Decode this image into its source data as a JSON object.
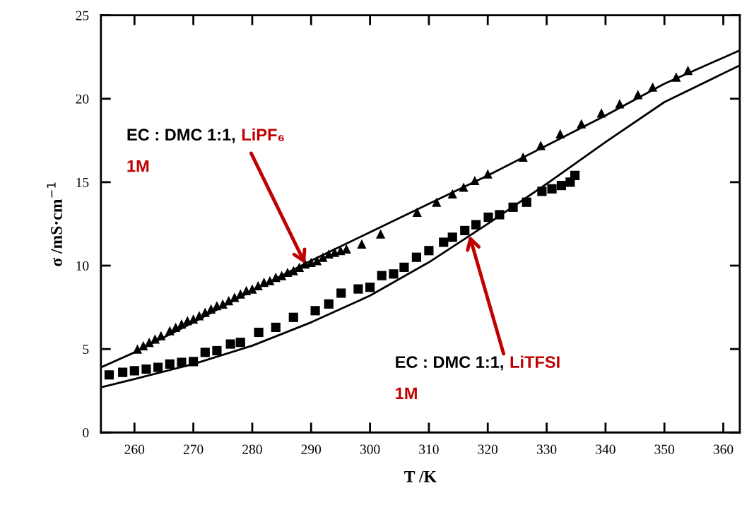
{
  "chart_data": {
    "type": "scatter",
    "xlabel": "T /K",
    "ylabel": "σ /mS·cm$^{−1}$",
    "xlim": [
      254.3,
      362.8
    ],
    "xticks": [
      260,
      270,
      280,
      290,
      300,
      310,
      320,
      330,
      340,
      350,
      360
    ],
    "ylim": [
      0,
      25
    ],
    "yticks": [
      0,
      5,
      10,
      15,
      20,
      25
    ],
    "grid": false,
    "legend": false,
    "series": [
      {
        "marker": "triangle",
        "color": "#000000",
        "x": [
          260.5,
          261.5,
          262.5,
          263.5,
          264.5,
          266,
          267,
          268,
          269,
          270,
          271,
          272,
          273,
          274,
          275,
          276,
          277,
          278,
          279,
          280,
          281,
          282,
          283,
          284,
          285,
          286,
          287,
          288,
          289,
          290,
          291,
          292,
          293,
          294,
          295,
          296,
          298.6,
          301.8,
          308,
          311.3,
          314,
          315.9,
          317.8,
          320,
          326,
          329,
          332.3,
          335.9,
          339.3,
          342.4,
          345.5,
          348,
          352,
          354
        ],
        "values": [
          5.0,
          5.2,
          5.4,
          5.6,
          5.8,
          6.1,
          6.3,
          6.5,
          6.7,
          6.8,
          7.0,
          7.2,
          7.4,
          7.6,
          7.7,
          7.9,
          8.1,
          8.3,
          8.5,
          8.6,
          8.8,
          9.0,
          9.1,
          9.3,
          9.4,
          9.6,
          9.7,
          9.9,
          10.1,
          10.2,
          10.3,
          10.5,
          10.7,
          10.8,
          10.9,
          11.0,
          11.3,
          11.9,
          13.2,
          13.8,
          14.3,
          14.7,
          15.1,
          15.5,
          16.5,
          17.2,
          17.9,
          18.5,
          19.15,
          19.7,
          20.25,
          20.7,
          21.3,
          21.7
        ]
      },
      {
        "marker": "square",
        "color": "#000000",
        "x": [
          255.7,
          258,
          260,
          262,
          264,
          266,
          268,
          270,
          272,
          274,
          276.3,
          278,
          281.1,
          284,
          287,
          290.7,
          293,
          295.1,
          298,
          300,
          302,
          304,
          305.8,
          307.9,
          310,
          312.5,
          314,
          316.1,
          318,
          320.1,
          322,
          324.3,
          326.6,
          329.2,
          330.9,
          332.5,
          334,
          334.8
        ],
        "values": [
          3.45,
          3.6,
          3.7,
          3.8,
          3.9,
          4.1,
          4.2,
          4.25,
          4.8,
          4.9,
          5.3,
          5.4,
          6.0,
          6.3,
          6.9,
          7.3,
          7.7,
          8.35,
          8.6,
          8.7,
          9.4,
          9.5,
          9.9,
          10.5,
          10.9,
          11.4,
          11.7,
          12.1,
          12.45,
          12.9,
          13.05,
          13.5,
          13.8,
          14.45,
          14.6,
          14.8,
          15.0,
          15.4
        ]
      },
      {
        "type": "line",
        "line_style": "solid",
        "color": "#000000",
        "x": [
          254.3,
          260,
          270,
          280,
          290,
          300,
          310,
          320,
          330,
          340,
          350,
          362.8
        ],
        "values": [
          3.9,
          4.8,
          6.6,
          8.5,
          10.3,
          12.0,
          13.7,
          15.4,
          17.2,
          19.0,
          20.9,
          22.9
        ]
      },
      {
        "type": "line",
        "line_style": "solid",
        "color": "#000000",
        "x": [
          254.3,
          260,
          270,
          280,
          290,
          300,
          310,
          320,
          330,
          340,
          350,
          362.8
        ],
        "values": [
          2.7,
          3.2,
          4.1,
          5.2,
          6.6,
          8.2,
          10.2,
          12.5,
          14.9,
          17.4,
          19.8,
          22.0
        ]
      }
    ],
    "annotations": [
      {
        "text": "EC : DMC 1:1,",
        "x": 289,
        "y": 10.1
      },
      "LiPF₆",
      "1M",
      {
        "text": "EC : DMC 1:1,",
        "x": 316.9,
        "y": 11.8
      },
      "LiTFSI",
      "1M"
    ]
  }
}
